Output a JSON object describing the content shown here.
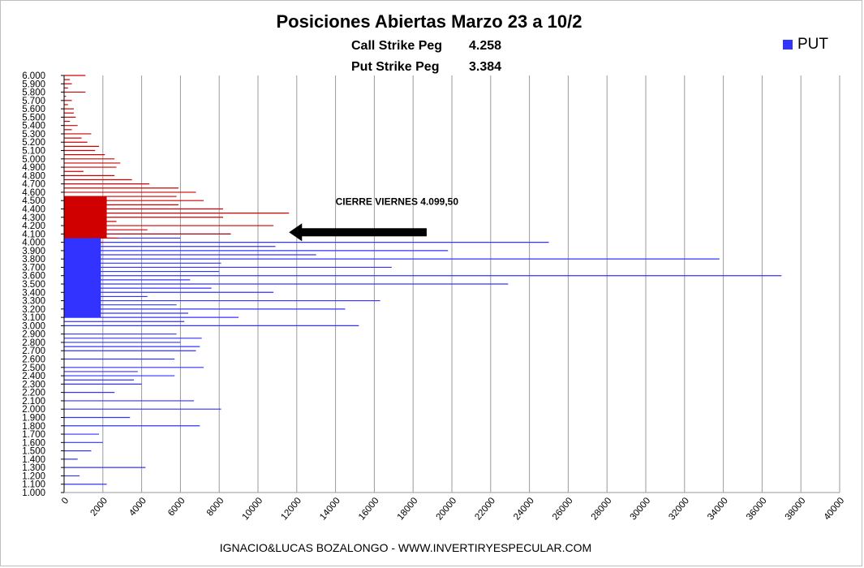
{
  "chart_data": {
    "type": "bar",
    "orientation": "horizontal",
    "title": "Posiciones Abiertas Marzo 23 a 10/2",
    "subtitle": [
      {
        "label": "Call Strike Peg",
        "value": "4.258"
      },
      {
        "label": "Put Strike Peg",
        "value": "3.384"
      }
    ],
    "legend": [
      {
        "name": "PUT",
        "color": "#3333ff",
        "position": "top-right"
      }
    ],
    "xlim": [
      0,
      40000
    ],
    "xticks": [
      0,
      2000,
      4000,
      6000,
      8000,
      10000,
      12000,
      14000,
      16000,
      18000,
      20000,
      22000,
      24000,
      26000,
      28000,
      30000,
      32000,
      34000,
      36000,
      38000,
      40000
    ],
    "ylim": [
      1000,
      6000
    ],
    "ytick_labels": [
      "6.000",
      "5.900",
      "5.800",
      "5.700",
      "5.600",
      "5.500",
      "5.400",
      "5.300",
      "5.200",
      "5.100",
      "5.000",
      "4.900",
      "4.800",
      "4.700",
      "4.600",
      "4.500",
      "4.400",
      "4.300",
      "4.200",
      "4.100",
      "4.000",
      "3.900",
      "3.800",
      "3.700",
      "3.600",
      "3.500",
      "3.400",
      "3.300",
      "3.200",
      "3.100",
      "3.000",
      "2.900",
      "2.800",
      "2.700",
      "2.600",
      "2.500",
      "2.400",
      "2.300",
      "2.200",
      "2.100",
      "2.000",
      "1.900",
      "1.800",
      "1.700",
      "1.600",
      "1.500",
      "1.400",
      "1.300",
      "1.200",
      "1.100",
      "1.000"
    ],
    "grid": "vertical",
    "series": [
      {
        "name": "PUT",
        "color": "#3333ff",
        "strikes": [
          1100,
          1200,
          1300,
          1400,
          1500,
          1600,
          1700,
          1800,
          1900,
          2000,
          2100,
          2200,
          2300,
          2350,
          2400,
          2450,
          2500,
          2600,
          2700,
          2750,
          2800,
          2850,
          2900,
          3000,
          3050,
          3100,
          3150,
          3200,
          3250,
          3300,
          3350,
          3400,
          3450,
          3500,
          3550,
          3600,
          3650,
          3700,
          3750,
          3800,
          3850,
          3900,
          3950,
          4000,
          4050,
          4100
        ],
        "values": [
          2200,
          800,
          4200,
          700,
          1400,
          2000,
          1800,
          7000,
          3400,
          8100,
          6700,
          2600,
          4000,
          3600,
          5700,
          3800,
          7200,
          5700,
          6800,
          7000,
          6000,
          7100,
          5800,
          15200,
          6200,
          9000,
          6400,
          14500,
          5800,
          16300,
          4300,
          10800,
          7600,
          22900,
          6500,
          37000,
          8000,
          16900,
          8100,
          33800,
          13000,
          19800,
          10900,
          25000,
          6000,
          8600
        ]
      },
      {
        "name": "CALL",
        "color": "#d00000",
        "strikes": [
          3700,
          3850,
          3900,
          3950,
          4000,
          4050,
          4100,
          4150,
          4200,
          4250,
          4300,
          4350,
          4400,
          4450,
          4500,
          4550,
          4600,
          4650,
          4700,
          4750,
          4800,
          4850,
          4900,
          4950,
          5000,
          5050,
          5100,
          5150,
          5200,
          5250,
          5300,
          5350,
          5400,
          5450,
          5500,
          5550,
          5600,
          5650,
          5700,
          5750,
          5800,
          5850,
          5900,
          5950,
          6000
        ],
        "values": [
          800,
          1100,
          1200,
          1300,
          2000,
          2800,
          8600,
          4300,
          10800,
          2700,
          8200,
          11600,
          8200,
          5900,
          7200,
          5800,
          6800,
          5900,
          4400,
          3500,
          2600,
          1000,
          2700,
          2900,
          2600,
          2100,
          1600,
          1800,
          1200,
          900,
          1400,
          400,
          700,
          300,
          600,
          500,
          500,
          200,
          400,
          100,
          1100,
          200,
          400,
          300,
          1100
        ]
      }
    ],
    "annotations": [
      {
        "text": "CIERRE VIERNES 4.099,50",
        "arrow_to": {
          "x": 11600,
          "y": 4120
        }
      }
    ]
  },
  "footer": "IGNACIO&LUCAS BOZALONGO - WWW.INVERTIRYESPECULAR.COM"
}
